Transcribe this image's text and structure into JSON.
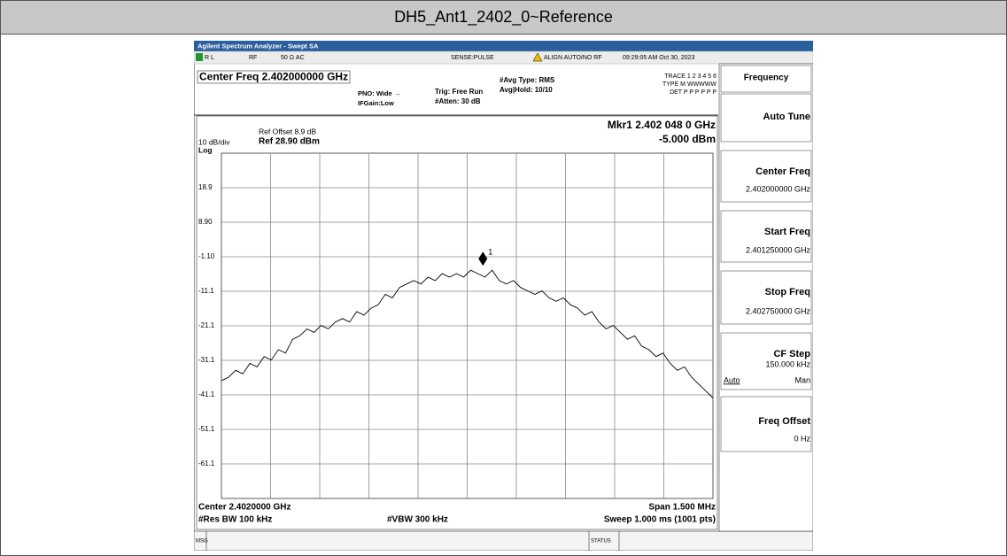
{
  "header": {
    "title": "DH5_Ant1_2402_0~Reference"
  },
  "window": {
    "title": "Agilent Spectrum Analyzer - Swept SA"
  },
  "status_line": [
    "R L",
    "RF",
    "50 Ω  AC",
    "SENSE:PULSE",
    "ALIGN AUTO/NO RF",
    "09:29:05 AM Oct 30, 2023"
  ],
  "settings": {
    "center_freq": "Center Freq 2.402000000 GHz",
    "pno": "PNO: Wide →",
    "ifgain": "IFGain:Low",
    "trig": "Trig: Free Run",
    "atten": "#Atten: 30 dB",
    "avg_type": "#Avg Type: RMS",
    "avg_hold": "Avg|Hold: 10/10",
    "trace": "TRACE 1 2 3 4 5 6",
    "type": "TYPE M WWWWW",
    "det": "DET P P P P P P"
  },
  "chart_data": {
    "type": "line",
    "ref_offset": "Ref Offset 8.9 dB",
    "ref_level": "Ref 28.90 dBm",
    "scale": "10 dB/div",
    "scale_type": "Log",
    "ylim": [
      -71.1,
      28.9
    ],
    "yticks": [
      18.9,
      {
        "value": 8.9,
        "label": "8.90"
      },
      {
        "value": -1.1,
        "label": "-1.10"
      },
      -11.1,
      -21.1,
      -31.1,
      -41.1,
      -51.1,
      -61.1
    ],
    "xlim": [
      2.40125,
      2.40275
    ],
    "grid": true,
    "color": "#000000",
    "values": [
      -37,
      -36,
      -34,
      -35,
      -32,
      -33,
      -30,
      -31,
      -28,
      -29,
      -25,
      -24,
      -22,
      -23,
      -21,
      -22,
      -20,
      -19,
      -20,
      -17,
      -18,
      -16,
      -15,
      -12,
      -13,
      -10,
      -9,
      -8,
      -9,
      -7,
      -8,
      -6,
      -7,
      -6,
      -7,
      -5,
      -6,
      -7,
      -5,
      -8,
      -9,
      -8,
      -10,
      -11,
      -12,
      -11,
      -13,
      -14,
      -13,
      -15,
      -16,
      -18,
      -17,
      -20,
      -22,
      -21,
      -23,
      -25,
      -24,
      -27,
      -28,
      -30,
      -29,
      -32,
      -34,
      -33,
      -36,
      -38,
      -40,
      -42
    ],
    "marker": {
      "name": "1",
      "label": "Mkr1 2.402 048 0 GHz",
      "x": 2.402048,
      "value": -5,
      "value_label": "-5.000 dBm"
    },
    "footer": [
      "Center 2.4020000 GHz",
      "Span 1.500 MHz",
      "#Res BW 100 kHz",
      "#VBW 300 kHz",
      "Sweep  1.000 ms (1001 pts)"
    ]
  },
  "softkeys": {
    "title": "Frequency",
    "keys": [
      {
        "label": "Auto Tune"
      },
      {
        "label": "Center Freq",
        "value": "2.402000000 GHz"
      },
      {
        "label": "Start Freq",
        "value": "2.401250000 GHz"
      },
      {
        "label": "Stop Freq",
        "value": "2.402750000 GHz"
      },
      {
        "label": "CF Step",
        "value": "150.000 kHz",
        "options": [
          "Auto",
          "Man"
        ]
      },
      {
        "label": "Freq Offset",
        "value": "0 Hz"
      }
    ]
  },
  "status_bar": [
    "MSG",
    "STATUS"
  ]
}
